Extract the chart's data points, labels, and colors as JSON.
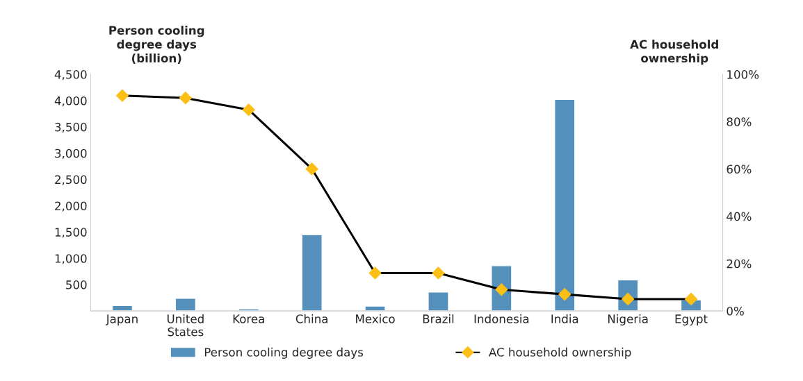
{
  "chart_data": {
    "type": "bar",
    "ylabel": "Person cooling degree days (billion)",
    "y2label": "AC household ownership",
    "categories": [
      "Japan",
      "United\nStates",
      "Korea",
      "China",
      "Mexico",
      "Brazil",
      "Indonesia",
      "India",
      "Nigeria",
      "Egypt"
    ],
    "series": [
      {
        "name": "Person cooling degree days",
        "color": "#5590bc",
        "values": [
          100,
          240,
          40,
          1450,
          90,
          360,
          860,
          4020,
          590,
          210
        ]
      },
      {
        "name": "AC household ownership",
        "type": "line",
        "axis": "y2",
        "color": "#000000",
        "colors": [
          "#fbbf16",
          "#fbbf16",
          "#fbbf16",
          "#fbbf16",
          "#fbbf16",
          "#fbbf16",
          "#fbbf16",
          "#fbbf16",
          "#fbbf16",
          "#fbbf16"
        ],
        "marker": "diamond",
        "line_style": "solid",
        "values": [
          91,
          90,
          85,
          60,
          16,
          16,
          9,
          7,
          5,
          5
        ]
      }
    ],
    "ylim": [
      0,
      4500
    ],
    "yticks": [
      {
        "value": 500,
        "label": "500"
      },
      {
        "value": 1000,
        "label": "1,000"
      },
      {
        "value": 1500,
        "label": "1,500"
      },
      {
        "value": 2000,
        "label": "2,000"
      },
      {
        "value": 2500,
        "label": "2,500"
      },
      {
        "value": 3000,
        "label": "3,000"
      },
      {
        "value": 3500,
        "label": "3,500"
      },
      {
        "value": 4000,
        "label": "4,000"
      },
      {
        "value": 4500,
        "label": "4,500"
      }
    ],
    "y2lim": [
      0,
      100
    ],
    "y2ticks": [
      {
        "value": 0,
        "label": "0%"
      },
      {
        "value": 20,
        "label": "20%"
      },
      {
        "value": 40,
        "label": "40%"
      },
      {
        "value": 60,
        "label": "60%"
      },
      {
        "value": 80,
        "label": "80%"
      },
      {
        "value": 100,
        "label": "100%"
      }
    ],
    "grid": false,
    "legend": "bottom"
  }
}
